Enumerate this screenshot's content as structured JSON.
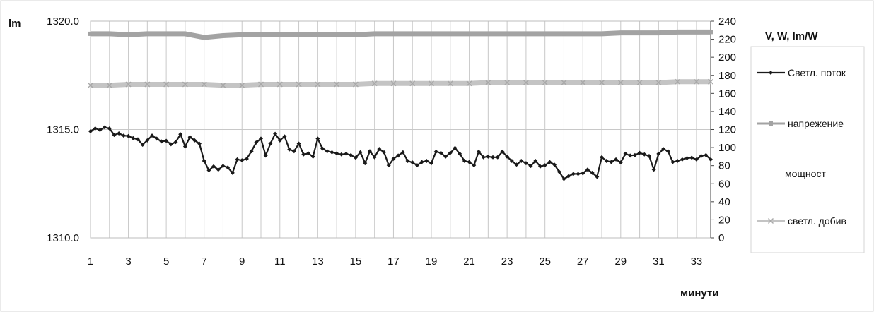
{
  "chart_data": {
    "type": "line",
    "left_axis": {
      "title": "lm",
      "ylim": [
        1310.0,
        1320.0
      ],
      "ticks": [
        "1310.0",
        "1315.0",
        "1320.0"
      ]
    },
    "right_axis": {
      "title": "V, W, lm/W",
      "ylim": [
        0,
        240
      ],
      "ticks": [
        "0",
        "20",
        "40",
        "60",
        "80",
        "100",
        "120",
        "140",
        "160",
        "180",
        "200",
        "220",
        "240"
      ]
    },
    "x_axis": {
      "title": "минути",
      "xlim": [
        1,
        33
      ],
      "ticks": [
        "1",
        "3",
        "5",
        "7",
        "9",
        "11",
        "13",
        "15",
        "17",
        "19",
        "21",
        "23",
        "25",
        "27",
        "29",
        "31",
        "33"
      ]
    },
    "grid": true,
    "legend_position": "right",
    "series": [
      {
        "name": "Светл. поток",
        "axis": "left",
        "color": "#1a1a1a",
        "marker": "diamond",
        "values": [
          [
            1.0,
            1314.92
          ],
          [
            1.25,
            1315.05
          ],
          [
            1.5,
            1314.98
          ],
          [
            1.75,
            1315.1
          ],
          [
            2.0,
            1315.05
          ],
          [
            2.25,
            1314.75
          ],
          [
            2.5,
            1314.82
          ],
          [
            2.75,
            1314.72
          ],
          [
            3.0,
            1314.7
          ],
          [
            3.25,
            1314.6
          ],
          [
            3.5,
            1314.55
          ],
          [
            3.75,
            1314.3
          ],
          [
            4.0,
            1314.5
          ],
          [
            4.25,
            1314.72
          ],
          [
            4.5,
            1314.58
          ],
          [
            4.75,
            1314.45
          ],
          [
            5.0,
            1314.48
          ],
          [
            5.25,
            1314.32
          ],
          [
            5.5,
            1314.42
          ],
          [
            5.75,
            1314.78
          ],
          [
            6.0,
            1314.22
          ],
          [
            6.25,
            1314.65
          ],
          [
            6.5,
            1314.5
          ],
          [
            6.75,
            1314.35
          ],
          [
            7.0,
            1313.55
          ],
          [
            7.25,
            1313.12
          ],
          [
            7.5,
            1313.3
          ],
          [
            7.75,
            1313.15
          ],
          [
            8.0,
            1313.32
          ],
          [
            8.25,
            1313.25
          ],
          [
            8.5,
            1313.0
          ],
          [
            8.75,
            1313.62
          ],
          [
            9.0,
            1313.58
          ],
          [
            9.25,
            1313.65
          ],
          [
            9.5,
            1314.0
          ],
          [
            9.75,
            1314.4
          ],
          [
            10.0,
            1314.58
          ],
          [
            10.25,
            1313.8
          ],
          [
            10.5,
            1314.35
          ],
          [
            10.75,
            1314.8
          ],
          [
            11.0,
            1314.5
          ],
          [
            11.25,
            1314.68
          ],
          [
            11.5,
            1314.08
          ],
          [
            11.75,
            1314.0
          ],
          [
            12.0,
            1314.35
          ],
          [
            12.25,
            1313.85
          ],
          [
            12.5,
            1313.9
          ],
          [
            12.75,
            1313.75
          ],
          [
            13.0,
            1314.58
          ],
          [
            13.25,
            1314.12
          ],
          [
            13.5,
            1314.0
          ],
          [
            13.75,
            1313.95
          ],
          [
            14.0,
            1313.9
          ],
          [
            14.25,
            1313.85
          ],
          [
            14.5,
            1313.88
          ],
          [
            14.75,
            1313.82
          ],
          [
            15.0,
            1313.7
          ],
          [
            15.25,
            1313.95
          ],
          [
            15.5,
            1313.45
          ],
          [
            15.75,
            1314.0
          ],
          [
            16.0,
            1313.72
          ],
          [
            16.25,
            1314.1
          ],
          [
            16.5,
            1313.95
          ],
          [
            16.75,
            1313.35
          ],
          [
            17.0,
            1313.65
          ],
          [
            17.25,
            1313.8
          ],
          [
            17.5,
            1313.95
          ],
          [
            17.75,
            1313.55
          ],
          [
            18.0,
            1313.48
          ],
          [
            18.25,
            1313.35
          ],
          [
            18.5,
            1313.5
          ],
          [
            18.75,
            1313.55
          ],
          [
            19.0,
            1313.45
          ],
          [
            19.25,
            1313.98
          ],
          [
            19.5,
            1313.92
          ],
          [
            19.75,
            1313.75
          ],
          [
            20.0,
            1313.92
          ],
          [
            20.25,
            1314.15
          ],
          [
            20.5,
            1313.88
          ],
          [
            20.75,
            1313.55
          ],
          [
            21.0,
            1313.5
          ],
          [
            21.25,
            1313.35
          ],
          [
            21.5,
            1313.98
          ],
          [
            21.75,
            1313.72
          ],
          [
            22.0,
            1313.75
          ],
          [
            22.25,
            1313.72
          ],
          [
            22.5,
            1313.72
          ],
          [
            22.75,
            1313.98
          ],
          [
            23.0,
            1313.75
          ],
          [
            23.25,
            1313.55
          ],
          [
            23.5,
            1313.38
          ],
          [
            23.75,
            1313.55
          ],
          [
            24.0,
            1313.45
          ],
          [
            24.25,
            1313.32
          ],
          [
            24.5,
            1313.55
          ],
          [
            24.75,
            1313.3
          ],
          [
            25.0,
            1313.35
          ],
          [
            25.25,
            1313.5
          ],
          [
            25.5,
            1313.38
          ],
          [
            25.75,
            1313.05
          ],
          [
            26.0,
            1312.72
          ],
          [
            26.25,
            1312.85
          ],
          [
            26.5,
            1312.95
          ],
          [
            26.75,
            1312.95
          ],
          [
            27.0,
            1312.98
          ],
          [
            27.25,
            1313.15
          ],
          [
            27.5,
            1313.0
          ],
          [
            27.75,
            1312.82
          ],
          [
            28.0,
            1313.72
          ],
          [
            28.25,
            1313.55
          ],
          [
            28.5,
            1313.5
          ],
          [
            28.75,
            1313.62
          ],
          [
            29.0,
            1313.48
          ],
          [
            29.25,
            1313.88
          ],
          [
            29.5,
            1313.8
          ],
          [
            29.75,
            1313.82
          ],
          [
            30.0,
            1313.92
          ],
          [
            30.25,
            1313.85
          ],
          [
            30.5,
            1313.78
          ],
          [
            30.75,
            1313.15
          ],
          [
            31.0,
            1313.88
          ],
          [
            31.25,
            1314.1
          ],
          [
            31.5,
            1314.0
          ],
          [
            31.75,
            1313.5
          ],
          [
            32.0,
            1313.55
          ],
          [
            32.25,
            1313.62
          ],
          [
            32.5,
            1313.68
          ],
          [
            32.75,
            1313.7
          ],
          [
            33.0,
            1313.62
          ],
          [
            33.25,
            1313.78
          ],
          [
            33.5,
            1313.82
          ],
          [
            33.75,
            1313.62
          ]
        ]
      },
      {
        "name": "напрежение",
        "axis": "right",
        "color": "#a3a3a3",
        "marker": "square",
        "values": [
          [
            1,
            226
          ],
          [
            2,
            226
          ],
          [
            3,
            225
          ],
          [
            4,
            226
          ],
          [
            5,
            226
          ],
          [
            6,
            226
          ],
          [
            7,
            222
          ],
          [
            8,
            224
          ],
          [
            9,
            225
          ],
          [
            10,
            225
          ],
          [
            11,
            225
          ],
          [
            12,
            225
          ],
          [
            13,
            225
          ],
          [
            14,
            225
          ],
          [
            15,
            225
          ],
          [
            16,
            226
          ],
          [
            17,
            226
          ],
          [
            18,
            226
          ],
          [
            19,
            226
          ],
          [
            20,
            226
          ],
          [
            21,
            226
          ],
          [
            22,
            226
          ],
          [
            23,
            226
          ],
          [
            24,
            226
          ],
          [
            25,
            226
          ],
          [
            26,
            226
          ],
          [
            27,
            226
          ],
          [
            28,
            226
          ],
          [
            29,
            227
          ],
          [
            30,
            227
          ],
          [
            31,
            227
          ],
          [
            32,
            228
          ],
          [
            33,
            228
          ],
          [
            33.75,
            228
          ]
        ]
      },
      {
        "name": "мощност",
        "axis": "right",
        "color": "#ffffff",
        "marker": "none",
        "values": []
      },
      {
        "name": "светл. добив",
        "axis": "right",
        "color": "#c4c4c4",
        "marker": "x",
        "values": [
          [
            1,
            169
          ],
          [
            2,
            169
          ],
          [
            3,
            170
          ],
          [
            4,
            170
          ],
          [
            5,
            170
          ],
          [
            6,
            170
          ],
          [
            7,
            170
          ],
          [
            8,
            169
          ],
          [
            9,
            169
          ],
          [
            10,
            170
          ],
          [
            11,
            170
          ],
          [
            12,
            170
          ],
          [
            13,
            170
          ],
          [
            14,
            170
          ],
          [
            15,
            170
          ],
          [
            16,
            171
          ],
          [
            17,
            171
          ],
          [
            18,
            171
          ],
          [
            19,
            171
          ],
          [
            20,
            171
          ],
          [
            21,
            171
          ],
          [
            22,
            172
          ],
          [
            23,
            172
          ],
          [
            24,
            172
          ],
          [
            25,
            172
          ],
          [
            26,
            172
          ],
          [
            27,
            172
          ],
          [
            28,
            172
          ],
          [
            29,
            172
          ],
          [
            30,
            172
          ],
          [
            31,
            172
          ],
          [
            32,
            173
          ],
          [
            33,
            173
          ],
          [
            33.75,
            173
          ]
        ]
      }
    ]
  }
}
